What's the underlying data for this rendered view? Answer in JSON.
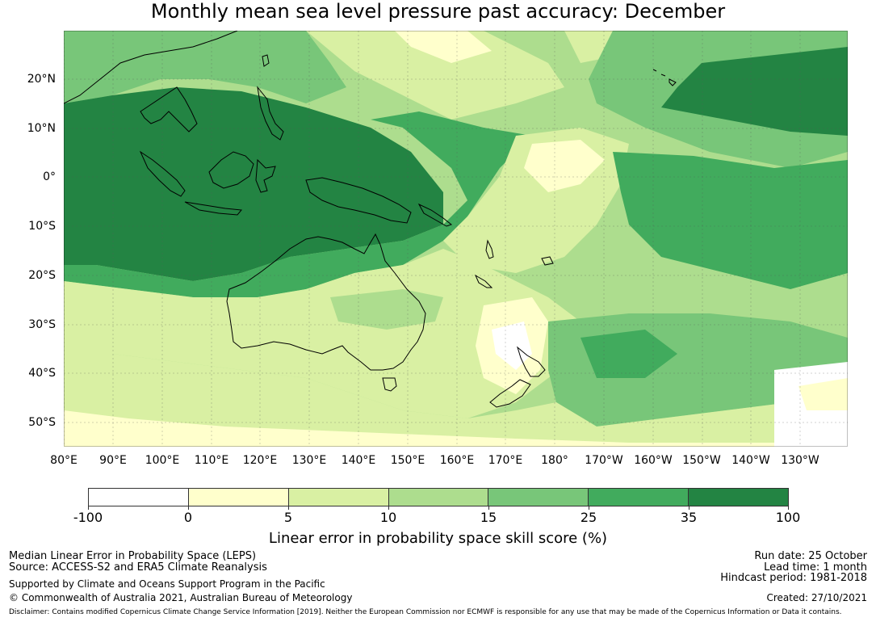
{
  "title": "Monthly mean sea level pressure past accuracy: December",
  "map": {
    "lat_labels": [
      "20°N",
      "10°N",
      "0°",
      "10°S",
      "20°S",
      "30°S",
      "40°S",
      "50°S"
    ],
    "lon_labels": [
      "80°E",
      "90°E",
      "100°E",
      "110°E",
      "120°E",
      "130°E",
      "140°E",
      "150°E",
      "160°E",
      "170°E",
      "180°",
      "170°W",
      "160°W",
      "150°W",
      "140°W",
      "130°W"
    ],
    "colors": {
      "white": "#ffffff",
      "lightyellow": "#ffffcc",
      "yellowgreen": "#d9f0a3",
      "lightgreen": "#addd8e",
      "green": "#78c679",
      "mediumgreen": "#41ab5d",
      "darkgreen": "#238443",
      "coast": "#000000"
    }
  },
  "colorbar": {
    "ticks": [
      "-100",
      "0",
      "5",
      "10",
      "15",
      "25",
      "35",
      "100"
    ],
    "colors": [
      "#ffffff",
      "#ffffcc",
      "#d9f0a3",
      "#addd8e",
      "#78c679",
      "#41ab5d",
      "#238443"
    ],
    "label": "Linear error in probability space skill score (%)"
  },
  "info": {
    "metric": "Median Linear Error in Probability Space (LEPS)",
    "source": "Source: ACCESS-S2 and ERA5 Climate Reanalysis",
    "support": "Supported by Climate and Oceans Support Program in the Pacific",
    "copyright": "© Commonwealth of Australia 2021, Australian Bureau of Meteorology",
    "run_date": "Run date: 25 October",
    "lead_time": "Lead time: 1 month",
    "hindcast": "Hindcast period: 1981-2018",
    "created": "Created: 27/10/2021",
    "disclaimer": "Disclaimer: Contains modified Copernicus Climate Change Service Information [2019]. Neither the European Commission nor ECMWF is responsible for any use that may be made of the Copernicus Information or Data it contains."
  }
}
